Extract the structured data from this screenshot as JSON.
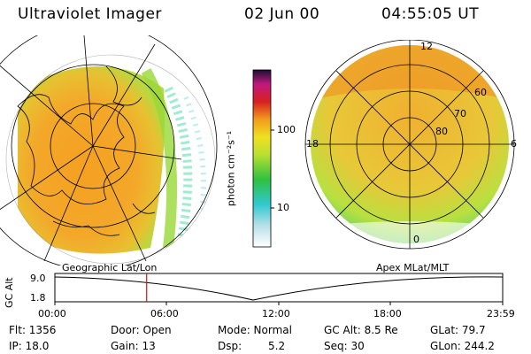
{
  "header": {
    "instrument": "Ultraviolet Imager",
    "date": "02 Jun 00",
    "time": "04:55:05 UT"
  },
  "colorbar": {
    "unit_label": "photon cm⁻²s⁻¹",
    "tick_100": "100",
    "tick_10": "10"
  },
  "left_panel": {
    "caption": "Geographic Lat/Lon"
  },
  "right_panel": {
    "caption": "Apex MLat/MLT",
    "mlt_12": "12",
    "mlt_18": "18",
    "mlt_6": "6",
    "mlt_0": "0",
    "lat_60": "60",
    "lat_70": "70",
    "lat_80": "80"
  },
  "altitude_plot": {
    "ylabel": "GC Alt",
    "y_top": "9.0",
    "y_bottom": "1.8",
    "x_ticks": [
      "00:00",
      "06:00",
      "12:00",
      "18:00",
      "23:59"
    ],
    "current_time_fraction": 0.205
  },
  "status": {
    "flt": "Flt: 1356",
    "ip": "IP: 18.0",
    "door": "Door: Open",
    "gain": "Gain: 13",
    "mode": "Mode: Normal",
    "dsp_label": "Dsp:",
    "dsp_value": "5.2",
    "gc_alt": "GC Alt: 8.5 Re",
    "seq": "Seq: 30",
    "glat": "GLat: 79.7",
    "glon": "GLon: 244.2"
  },
  "colors": {
    "orange": "#f39b1c",
    "yellow": "#e8e020",
    "green": "#3fcf30",
    "cyan": "#40d8d8",
    "red_marker": "#d81010"
  }
}
